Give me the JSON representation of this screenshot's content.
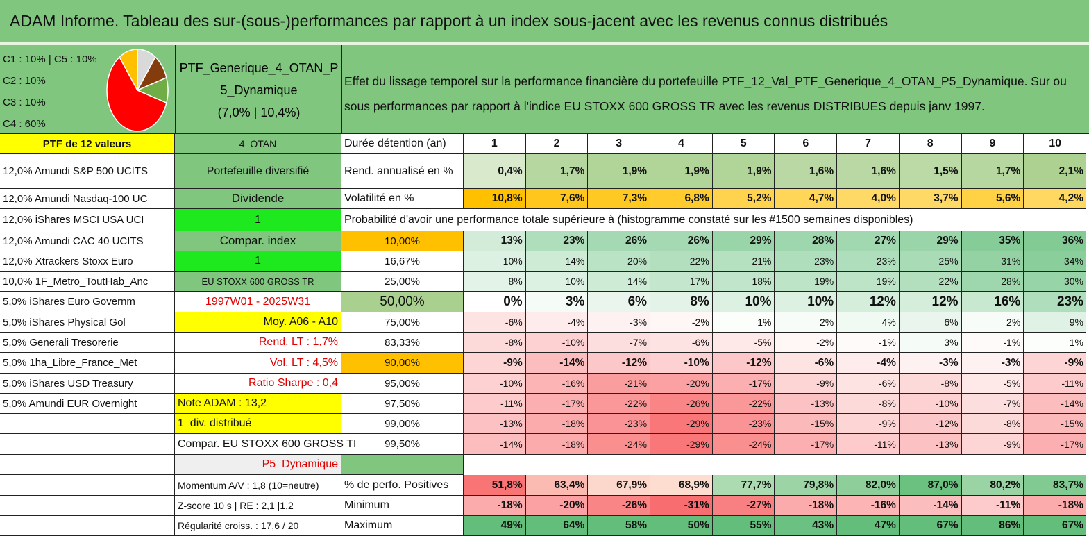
{
  "header": {
    "title": "ADAM Informe. Tableau des sur-(sous-)performances par rapport à un index sous-jacent avec les revenus connus distribués"
  },
  "pie": {
    "type": "pie",
    "legend": [
      "C1 : 10% | C5 : 10%",
      "C2 : 10%",
      "C3 : 10%",
      "C4 : 60%"
    ],
    "values": [
      10,
      10,
      10,
      60,
      10
    ],
    "colors": [
      "#d9d9d9",
      "#843c0c",
      "#70ad47",
      "#ff0000",
      "#ffc000"
    ]
  },
  "portfolio": {
    "name": "PTF_Generique_4_OTAN_P5_Dynamique",
    "stats": "(7,0% | 10,4%)"
  },
  "description": "Effet du lissage temporel sur la performance financière du portefeuille PTF_12_Val_PTF_Generique_4_OTAN_P5_Dynamique. Sur ou sous performances par rapport à l'indice EU STOXX 600 GROSS TR avec les revenus DISTRIBUES depuis janv 1997.",
  "rows": [
    {
      "holding": "PTF de 12 valeurs",
      "info": "4_OTAN",
      "label": "Durée détention (an)",
      "cells": [
        1,
        2,
        3,
        4,
        5,
        6,
        7,
        8,
        9,
        10
      ]
    },
    {
      "holding": "12,0% Amundi S&P 500 UCITS",
      "info": "Portefeuille diversifié",
      "label": "Rend. annualisé en %",
      "cells": [
        "0,4%",
        "1,7%",
        "1,9%",
        "1,9%",
        "1,9%",
        "1,6%",
        "1,6%",
        "1,5%",
        "1,7%",
        "2,1%"
      ]
    },
    {
      "holding": "12,0% Amundi Nasdaq-100 UC",
      "info": "Dividende",
      "label": "Volatilité en %",
      "cells": [
        "10,8%",
        "7,6%",
        "7,3%",
        "6,8%",
        "5,2%",
        "4,7%",
        "4,0%",
        "3,7%",
        "5,6%",
        "4,2%"
      ]
    },
    {
      "holding": "12,0% iShares MSCI USA UCI",
      "info": "1",
      "note": "Probabilité d'avoir une performance totale supérieure à (histogramme constaté sur les #1500 semaines disponibles)"
    },
    {
      "holding": "12,0% Amundi CAC 40 UCITS",
      "info": "Compar. index",
      "label": "10,00%",
      "cells": [
        "13%",
        "23%",
        "26%",
        "26%",
        "29%",
        "28%",
        "27%",
        "29%",
        "35%",
        "36%"
      ]
    },
    {
      "holding": "12,0% Xtrackers Stoxx Euro",
      "info": "1",
      "label": "16,67%",
      "cells": [
        "10%",
        "14%",
        "20%",
        "22%",
        "21%",
        "23%",
        "23%",
        "25%",
        "31%",
        "34%"
      ]
    },
    {
      "holding": "10,0% 1F_Metro_ToutHab_Anc",
      "info": "EU STOXX 600 GROSS TR",
      "label": "25,00%",
      "cells": [
        "8%",
        "10%",
        "14%",
        "17%",
        "18%",
        "19%",
        "19%",
        "22%",
        "28%",
        "30%"
      ]
    },
    {
      "holding": "5,0% iShares Euro Governm",
      "info": "1997W01 - 2025W31",
      "label": "50,00%",
      "cells": [
        "0%",
        "3%",
        "6%",
        "8%",
        "10%",
        "10%",
        "12%",
        "12%",
        "16%",
        "23%"
      ]
    },
    {
      "holding": "5,0% iShares Physical Gol",
      "info": "Moy. A06 - A10",
      "label": "75,00%",
      "cells": [
        "-6%",
        "-4%",
        "-3%",
        "-2%",
        "1%",
        "2%",
        "4%",
        "6%",
        "2%",
        "9%"
      ]
    },
    {
      "holding": "5,0% Generali Tresorerie",
      "info": "Rend. LT : 1,7%",
      "label": "83,33%",
      "cells": [
        "-8%",
        "-10%",
        "-7%",
        "-6%",
        "-5%",
        "-2%",
        "-1%",
        "3%",
        "-1%",
        "1%"
      ]
    },
    {
      "holding": "5,0% 1ha_Libre_France_Met",
      "info": "Vol. LT : 4,5%",
      "label": "90,00%",
      "cells": [
        "-9%",
        "-14%",
        "-12%",
        "-10%",
        "-12%",
        "-6%",
        "-4%",
        "-3%",
        "-3%",
        "-9%"
      ]
    },
    {
      "holding": "5,0% iShares USD Treasury",
      "info": "Ratio Sharpe : 0,4",
      "label": "95,00%",
      "cells": [
        "-10%",
        "-16%",
        "-21%",
        "-20%",
        "-17%",
        "-9%",
        "-6%",
        "-8%",
        "-5%",
        "-11%"
      ]
    },
    {
      "holding": "5,0% Amundi EUR Overnight",
      "info": "Note ADAM : 13,2",
      "label": "97,50%",
      "cells": [
        "-11%",
        "-17%",
        "-22%",
        "-26%",
        "-22%",
        "-13%",
        "-8%",
        "-10%",
        "-7%",
        "-14%"
      ]
    },
    {
      "info": "1_div. distribué",
      "label": "99,00%",
      "cells": [
        "-13%",
        "-18%",
        "-23%",
        "-29%",
        "-23%",
        "-15%",
        "-9%",
        "-12%",
        "-8%",
        "-15%"
      ]
    },
    {
      "info": "Compar. EU STOXX 600 GROSS TI",
      "label": "99,50%",
      "cells": [
        "-14%",
        "-18%",
        "-24%",
        "-29%",
        "-24%",
        "-17%",
        "-11%",
        "-13%",
        "-9%",
        "-17%"
      ]
    },
    {
      "info": "P5_Dynamique"
    },
    {
      "info": "Momentum A/V : 1,8 (10=neutre)",
      "label": "% de perfo. Positives",
      "cells": [
        "51,8%",
        "63,4%",
        "67,9%",
        "68,9%",
        "77,7%",
        "79,8%",
        "82,0%",
        "87,0%",
        "80,2%",
        "83,7%"
      ]
    },
    {
      "info": "Z-score 10 s | RE : 2,1 |1,2",
      "label": "Minimum",
      "cells": [
        "-18%",
        "-20%",
        "-26%",
        "-31%",
        "-27%",
        "-18%",
        "-16%",
        "-14%",
        "-11%",
        "-18%"
      ]
    },
    {
      "info": "Régularité croiss. : 17,6 / 20",
      "label": "Maximum",
      "cells": [
        "49%",
        "64%",
        "58%",
        "50%",
        "55%",
        "43%",
        "47%",
        "67%",
        "86%",
        "67%"
      ]
    }
  ]
}
